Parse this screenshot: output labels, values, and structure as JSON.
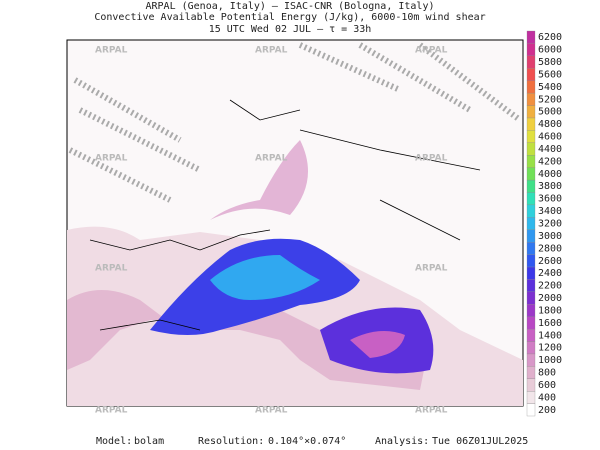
{
  "header": {
    "line1": "ARPAL (Genoa, Italy)  –  ISAC-CNR (Bologna, Italy)",
    "line2": "Convective Available Potential Energy (J/kg), 6000-10m wind shear",
    "line3": "15 UTC Wed 02 JUL  –  τ = 33h"
  },
  "watermark": "ARPAL",
  "colorbar": {
    "labels": [
      "200",
      "400",
      "600",
      "800",
      "1000",
      "1200",
      "1400",
      "1600",
      "1800",
      "2000",
      "2200",
      "2400",
      "2600",
      "2800",
      "3000",
      "3200",
      "3400",
      "3600",
      "3800",
      "4000",
      "4200",
      "4400",
      "4600",
      "4800",
      "5000",
      "5200",
      "5400",
      "5600",
      "5800",
      "6000",
      "6200"
    ],
    "colors": [
      "#ffffff",
      "#f2e6ea",
      "#e8ccd8",
      "#e0b0cc",
      "#d898c8",
      "#d07cc4",
      "#c860c4",
      "#b848c4",
      "#9c38c8",
      "#7c30d0",
      "#5c30dc",
      "#3c38e8",
      "#3058f0",
      "#3078f0",
      "#3098f0",
      "#30b8ec",
      "#30d0dc",
      "#30e0b8",
      "#40e088",
      "#70e058",
      "#98e048",
      "#c0e040",
      "#e0e040",
      "#f0d040",
      "#f0b040",
      "#f09040",
      "#f07040",
      "#f05050",
      "#e04070",
      "#d03090",
      "#c030a0"
    ]
  },
  "footer": {
    "model_label": "Model:",
    "model": "bolam",
    "resolution_label": "Resolution:",
    "resolution": "0.104°×0.074°",
    "analysis_label": "Analysis:",
    "analysis": "Tue 06Z01JUL2025"
  }
}
